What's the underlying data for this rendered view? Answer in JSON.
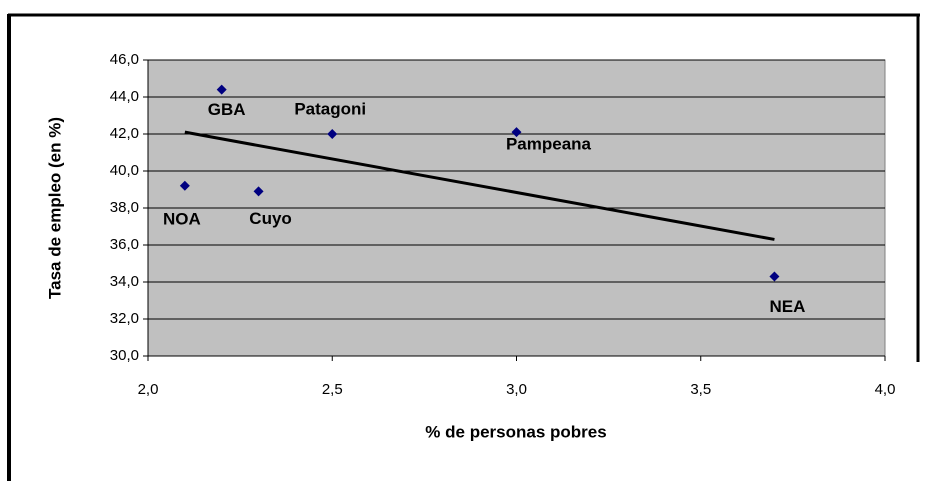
{
  "chart_data": {
    "type": "scatter",
    "xlabel": "% de personas pobres",
    "ylabel": "Tasa de empleo (en %)",
    "point_labels": [
      "NOA",
      "GBA",
      "Cuyo",
      "Patagoni",
      "Pampeana",
      "NEA"
    ],
    "x": [
      2.1,
      2.2,
      2.3,
      2.5,
      3.0,
      3.7
    ],
    "values": [
      39.2,
      44.4,
      38.9,
      42.0,
      42.1,
      34.3
    ],
    "color": "#000080",
    "trendline": {
      "x": [
        2.1,
        3.7
      ],
      "values": [
        42.1,
        36.3
      ],
      "color": "#000000"
    },
    "xlim": [
      2.0,
      4.0
    ],
    "xticks": [
      {
        "value": 2.0,
        "label": "2,0"
      },
      {
        "value": 2.5,
        "label": "2,5"
      },
      {
        "value": 3.0,
        "label": "3,0"
      },
      {
        "value": 3.5,
        "label": "3,5"
      },
      {
        "value": 4.0,
        "label": "4,0"
      }
    ],
    "ylim": [
      30,
      46
    ],
    "yticks": [
      {
        "value": 30,
        "label": "30,0"
      },
      {
        "value": 32,
        "label": "32,0"
      },
      {
        "value": 34,
        "label": "34,0"
      },
      {
        "value": 36,
        "label": "36,0"
      },
      {
        "value": 38,
        "label": "38,0"
      },
      {
        "value": 40,
        "label": "40,0"
      },
      {
        "value": 42,
        "label": "42,0"
      },
      {
        "value": 44,
        "label": "44,0"
      },
      {
        "value": 46,
        "label": "46,0"
      }
    ],
    "grid": true,
    "plot_background": "#c0c0c0"
  }
}
